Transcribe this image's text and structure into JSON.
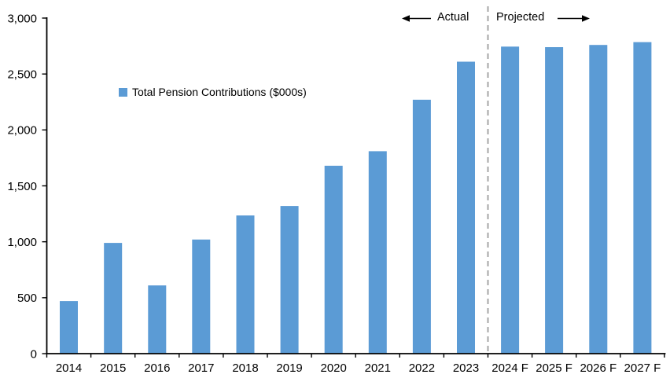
{
  "chart_data": {
    "type": "bar",
    "title": "",
    "xlabel": "",
    "ylabel": "",
    "categories": [
      "2014",
      "2015",
      "2016",
      "2017",
      "2018",
      "2019",
      "2020",
      "2021",
      "2022",
      "2023",
      "2024 F",
      "2025 F",
      "2026 F",
      "2027 F"
    ],
    "values": [
      470,
      990,
      610,
      1020,
      1235,
      1320,
      1680,
      1810,
      2270,
      2610,
      2745,
      2740,
      2760,
      2785
    ],
    "legend_label": "Total Pension Contributions ($000s)",
    "ylim": [
      0,
      3000
    ],
    "ytick_step": 500,
    "ytick_labels": [
      "0",
      "500",
      "1,000",
      "1,500",
      "2,000",
      "2,500",
      "3,000"
    ],
    "grid": false,
    "legend_position": "inside-upper-left",
    "annotations": {
      "actual_label": "Actual",
      "projected_label": "Projected",
      "divider_after_category_index": 10
    },
    "colors": {
      "bar": "#5B9BD5",
      "divider": "#A6A6A6",
      "axis": "#000000",
      "text": "#000000"
    }
  }
}
